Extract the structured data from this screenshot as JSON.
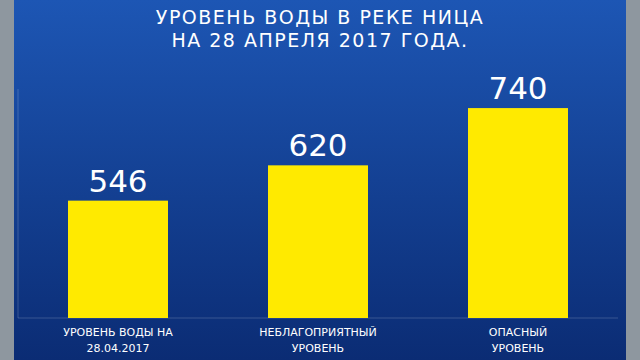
{
  "chart_data": {
    "type": "bar",
    "title": "УРОВЕНЬ ВОДЫ В РЕКЕ НИЦА\nНА 28 АПРЕЛЯ 2017 ГОДА.",
    "categories": [
      "УРОВЕНЬ ВОДЫ НА\n28.04.2017",
      "НЕБЛАГОПРИЯТНЫЙ\nУРОВЕНЬ",
      "ОПАСНЫЙ\nУРОВЕНЬ"
    ],
    "values": [
      546,
      620,
      740
    ],
    "color": "#ffea00",
    "ylim": [
      300,
      780
    ],
    "yticks": [],
    "grid": false,
    "data_labels": true,
    "tick_labels": "x"
  }
}
